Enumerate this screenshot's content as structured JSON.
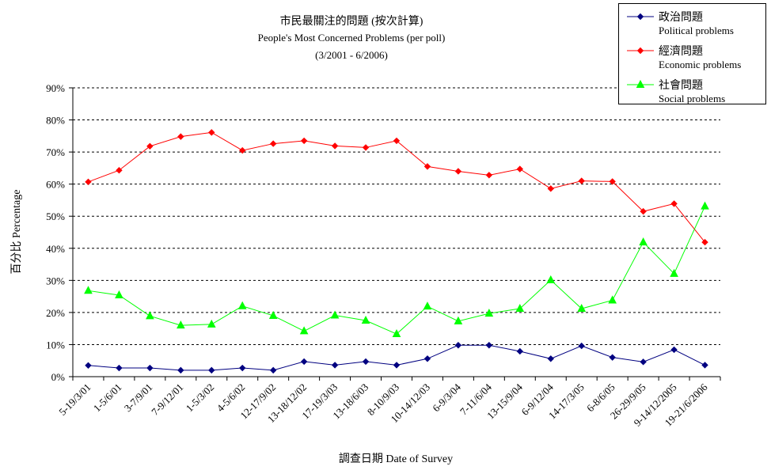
{
  "chart_data": {
    "type": "line",
    "title": "市民最關注的問題 (按次計算)",
    "subtitle": "People's Most Concerned Problems  (per poll)",
    "period": "(3/2001 - 6/2006)",
    "xlabel": "調查日期 Date of Survey",
    "ylabel": "百分比 Percentage",
    "ylim": [
      0,
      90
    ],
    "yticks": [
      "0%",
      "10%",
      "20%",
      "30%",
      "40%",
      "50%",
      "60%",
      "70%",
      "80%",
      "90%"
    ],
    "grid": true,
    "legend_position": "top-right",
    "categories": [
      "5-19/3/01",
      "1-5/6/01",
      "3-7/9/01",
      "7-9/12/01",
      "1-5/3/02",
      "4-5/6/02",
      "12-17/9/02",
      "13-18/12/02",
      "17-19/3/03",
      "13-18/6/03",
      "8-10/9/03",
      "10-14/12/03",
      "6-9/3/04",
      "7-11/6/04",
      "13-15/9/04",
      "6-9/12/04",
      "14-17/3/05",
      "6-8/6/05",
      "26-29/9/05",
      "9-14/12/2005",
      "19-21/6/2006"
    ],
    "series": [
      {
        "name": "政治問題",
        "name_en": "Political problems",
        "color": "#000080",
        "marker": "diamond",
        "values": [
          3.5,
          2.7,
          2.7,
          2.0,
          2.0,
          2.7,
          2.0,
          4.7,
          3.6,
          4.7,
          3.6,
          5.6,
          9.8,
          9.8,
          7.9,
          5.6,
          9.6,
          6.0,
          4.6,
          8.4,
          3.6
        ]
      },
      {
        "name": "經濟問題",
        "name_en": "Economic problems",
        "color": "#ff0000",
        "marker": "diamond",
        "values": [
          60.7,
          64.3,
          71.8,
          74.8,
          76.1,
          70.5,
          72.6,
          73.5,
          71.9,
          71.4,
          73.5,
          65.5,
          64.0,
          62.8,
          64.7,
          58.6,
          61.0,
          60.8,
          51.5,
          53.9,
          41.9
        ]
      },
      {
        "name": "社會問題",
        "name_en": "Social problems",
        "color": "#00ff00",
        "marker": "triangle",
        "values": [
          26.8,
          25.4,
          18.9,
          16.0,
          16.3,
          22.0,
          19.0,
          14.2,
          19.1,
          17.5,
          13.3,
          21.9,
          17.3,
          19.7,
          21.2,
          30.1,
          21.2,
          23.8,
          41.9,
          32.1,
          53.1
        ]
      }
    ]
  }
}
